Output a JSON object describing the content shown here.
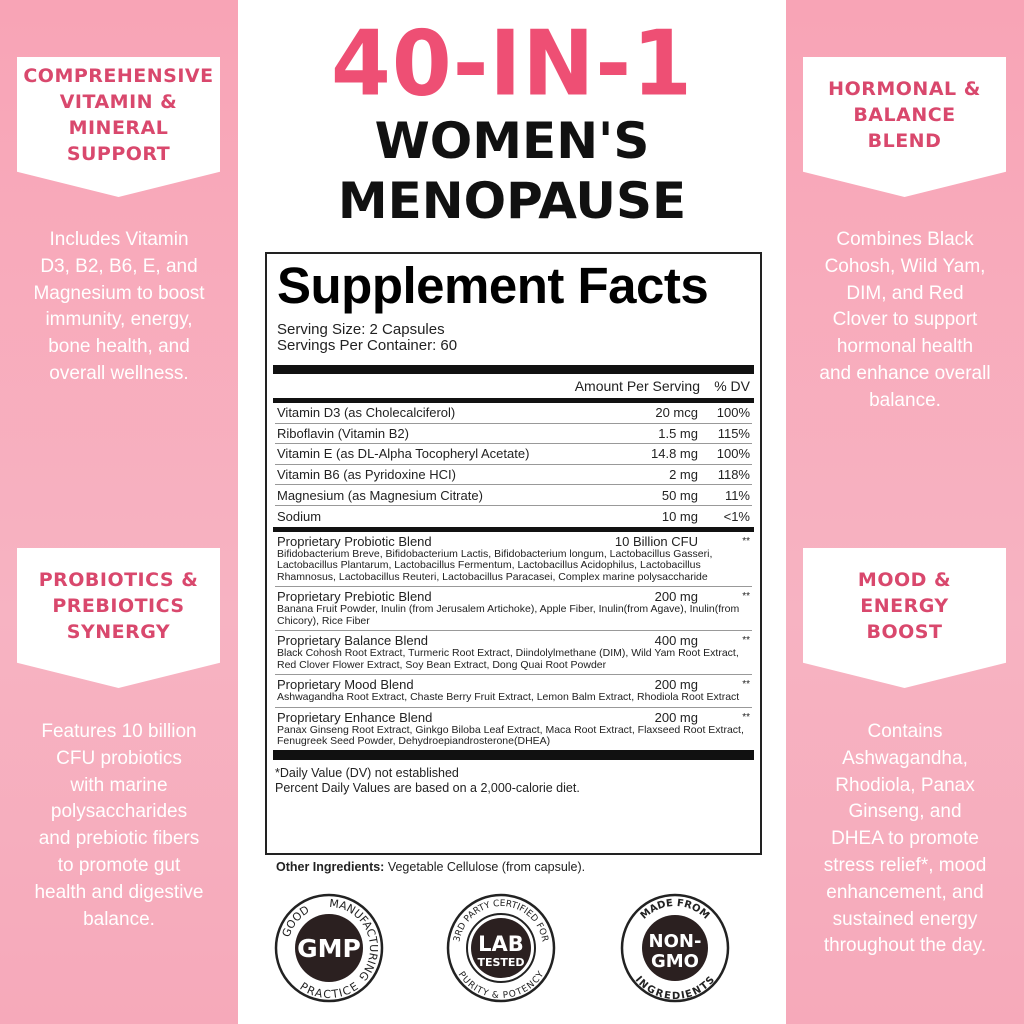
{
  "colors": {
    "accent": "#ee4f74",
    "panel_pink": "#f8a4b6",
    "heading_pink": "#d9486d"
  },
  "headline": {
    "line1": "40-IN-1",
    "line2": "WOMEN'S",
    "line3": "MENOPAUSE"
  },
  "left_panel": [
    {
      "heading": "COMPREHENSIVE\nVITAMIN &\nMINERAL\nSUPPORT",
      "text": "Includes Vitamin\nD3, B2, B6, E, and\nMagnesium to boost\nimmunity, energy,\nbone health, and\noverall wellness."
    },
    {
      "heading": "PROBIOTICS &\nPREBIOTICS\nSYNERGY",
      "text": "Features 10 billion\nCFU probiotics\nwith marine\npolysaccharides\nand prebiotic fibers\nto promote gut\nhealth and digestive\nbalance."
    }
  ],
  "right_panel": [
    {
      "heading": "HORMONAL &\nBALANCE\nBLEND",
      "text": "Combines Black\nCohosh, Wild Yam,\nDIM, and Red\nClover to support\nhormonal health\nand enhance overall\nbalance."
    },
    {
      "heading": "MOOD &\nENERGY\nBOOST",
      "text": "Contains\nAshwagandha,\nRhodiola, Panax\nGinseng, and\nDHEA to promote\nstress relief*, mood\nenhancement, and\nsustained energy\nthroughout the day."
    }
  ],
  "facts": {
    "title": "Supplement Facts",
    "serving_size": "Serving Size: 2 Capsules",
    "servings_per_container": "Servings Per Container: 60",
    "col_amount": "Amount Per Serving",
    "col_dv": "% DV",
    "nutrients": [
      {
        "name": "Vitamin D3 (as Cholecalciferol)",
        "amount": "20 mcg",
        "dv": "100%"
      },
      {
        "name": "Riboflavin (Vitamin B2)",
        "amount": "1.5 mg",
        "dv": "115%"
      },
      {
        "name": "Vitamin E (as DL-Alpha Tocopheryl Acetate)",
        "amount": "14.8 mg",
        "dv": "100%"
      },
      {
        "name": "Vitamin B6 (as Pyridoxine HCI)",
        "amount": "2 mg",
        "dv": "118%"
      },
      {
        "name": "Magnesium (as Magnesium Citrate)",
        "amount": "50 mg",
        "dv": "11%"
      },
      {
        "name": "Sodium",
        "amount": "10 mg",
        "dv": "<1%"
      }
    ],
    "blends": [
      {
        "name": "Proprietary Probiotic Blend",
        "amount": "10 Billion CFU",
        "dv": "**",
        "ingredients": "Bifidobacterium Breve, Bifidobacterium Lactis, Bifidobacterium longum, Lactobacillus Gasseri, Lactobacillus Plantarum, Lactobacillus Fermentum, Lactobacillus Acidophilus, Lactobacillus Rhamnosus, Lactobacillus Reuteri, Lactobacillus Paracasei, Complex marine polysaccharide"
      },
      {
        "name": "Proprietary Prebiotic Blend",
        "amount": "200 mg",
        "dv": "**",
        "ingredients": "Banana Fruit Powder, Inulin (from Jerusalem Artichoke), Apple Fiber, Inulin(from Agave), Inulin(from Chicory), Rice Fiber"
      },
      {
        "name": "Proprietary Balance Blend",
        "amount": "400 mg",
        "dv": "**",
        "ingredients": "Black Cohosh Root Extract, Turmeric Root Extract, Diindolylmethane (DIM), Wild Yam Root Extract, Red Clover Flower Extract, Soy Bean Extract, Dong Quai Root Powder"
      },
      {
        "name": "Proprietary Mood Blend",
        "amount": "200 mg",
        "dv": "**",
        "ingredients": "Ashwagandha Root Extract, Chaste Berry Fruit Extract, Lemon Balm Extract, Rhodiola Root Extract"
      },
      {
        "name": "Proprietary Enhance Blend",
        "amount": "200 mg",
        "dv": "**",
        "ingredients": "Panax Ginseng Root Extract, Ginkgo Biloba Leaf Extract, Maca Root Extract, Flaxseed Root Extract, Fenugreek Seed Powder, Dehydroepiandrosterone(DHEA)"
      }
    ],
    "footnote1": "*Daily Value (DV) not established",
    "footnote2": "Percent Daily Values are based on a 2,000-calorie diet."
  },
  "other_ingredients": {
    "label": "Other Ingredients:",
    "value": " Vegetable Cellulose (from capsule)."
  },
  "badges": [
    {
      "center": "GMP",
      "ring_top": "MANUFACTURING",
      "ring_left": "GOOD",
      "ring_bottom": "PRACTICE"
    },
    {
      "center1": "LAB",
      "center2": "TESTED",
      "ring_top": "3RD PARTY CERTIFIED FOR",
      "ring_bottom": "PURITY & POTENCY"
    },
    {
      "center1": "NON-",
      "center2": "GMO",
      "ring_top": "MADE FROM",
      "ring_bottom": "INGREDIENTS"
    }
  ]
}
